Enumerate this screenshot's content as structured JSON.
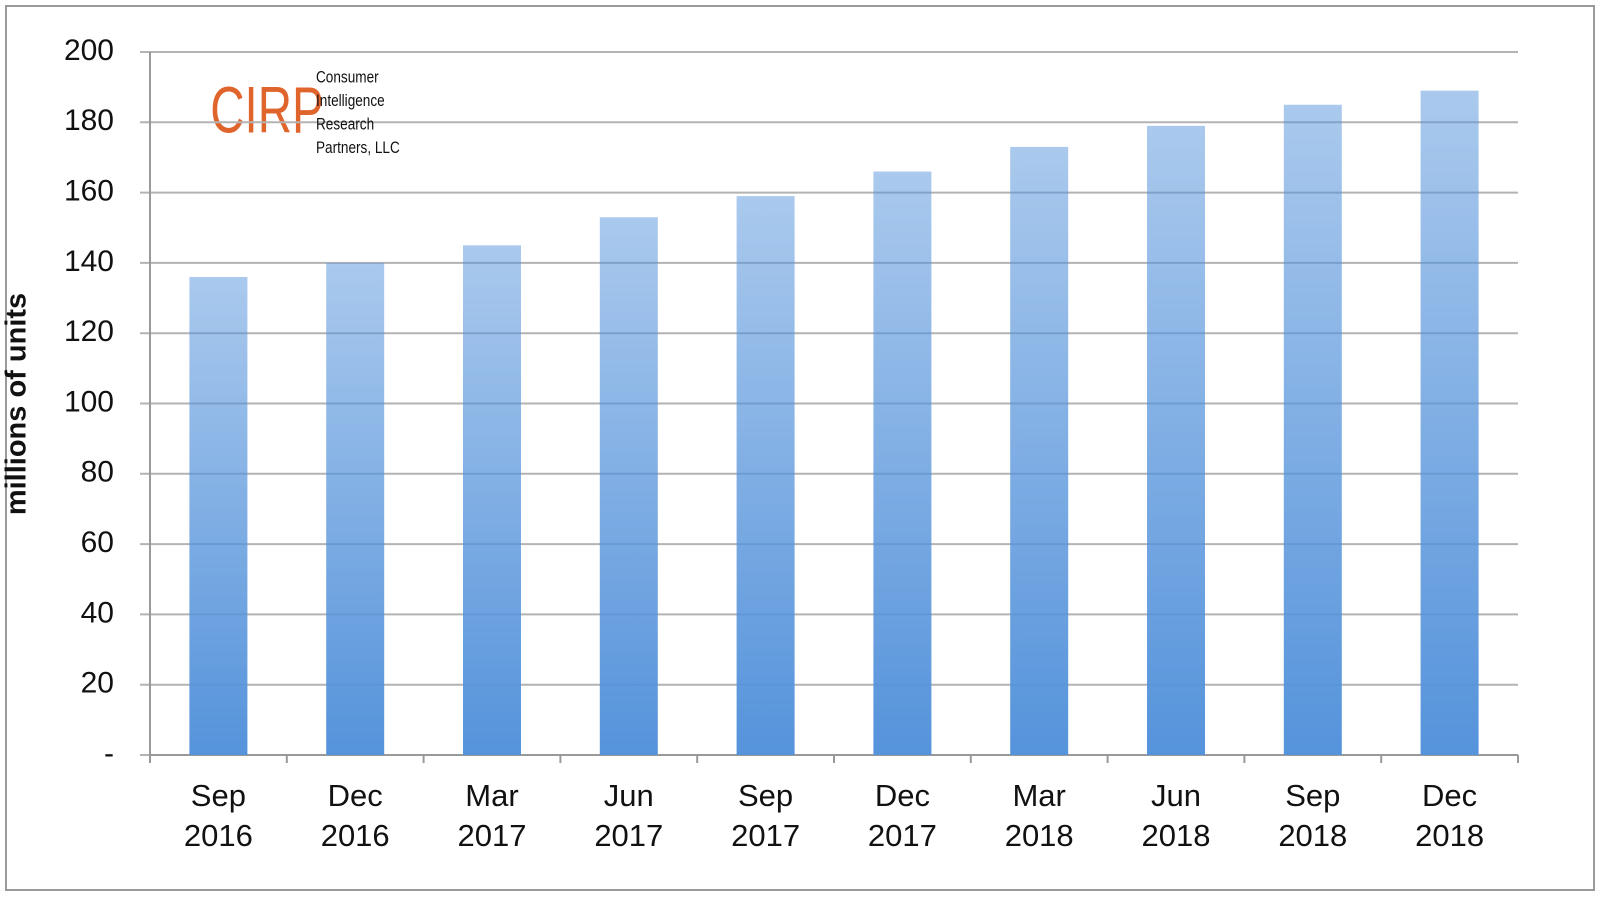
{
  "chart_data": {
    "type": "bar",
    "y_label": "millions of units",
    "categories": [
      "Sep 2016",
      "Dec 2016",
      "Mar 2017",
      "Jun 2017",
      "Sep 2017",
      "Dec 2017",
      "Mar 2018",
      "Jun 2018",
      "Sep 2018",
      "Dec 2018"
    ],
    "values": [
      136,
      140,
      145,
      153,
      159,
      166,
      173,
      179,
      185,
      189
    ],
    "color": "#5593db",
    "ylim": [
      0,
      200
    ],
    "yticks": [
      {
        "value": 0,
        "label": "-"
      },
      20,
      40,
      60,
      80,
      100,
      120,
      140,
      160,
      180,
      200
    ],
    "grid": true,
    "logo": {
      "mark": "CIRP",
      "lines": [
        "Consumer",
        "Intelligence",
        "Research",
        "Partners, LLC"
      ]
    }
  }
}
